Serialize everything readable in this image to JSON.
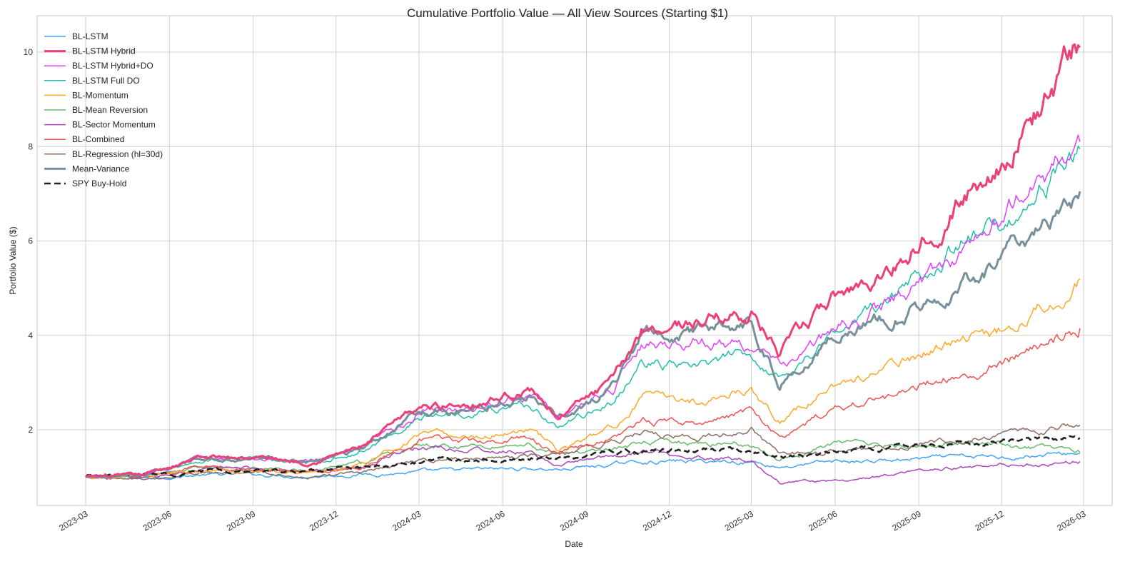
{
  "chart_data": {
    "type": "line",
    "title": "Cumulative Portfolio Value — All View Sources (Starting $1)",
    "xlabel": "Date",
    "ylabel": "Portfolio Value ($)",
    "x_range": [
      "2023-02-01",
      "2026-03-25"
    ],
    "ylim": [
      0.45,
      10.65
    ],
    "grid": true,
    "legend_position": "top-left",
    "x_ticks": [
      "2023-03",
      "2023-06",
      "2023-09",
      "2023-12",
      "2024-03",
      "2024-06",
      "2024-09",
      "2024-12",
      "2025-03",
      "2025-06",
      "2025-09",
      "2025-12",
      "2026-03"
    ],
    "y_ticks": [
      2,
      4,
      6,
      8,
      10
    ],
    "x": [
      "2023-03",
      "2023-05",
      "2023-07",
      "2023-09",
      "2023-11",
      "2024-01",
      "2024-03",
      "2024-05",
      "2024-07",
      "2024-08",
      "2024-10",
      "2024-11",
      "2025-01",
      "2025-03",
      "2025-04",
      "2025-06",
      "2025-08",
      "2025-10",
      "2025-12",
      "2026-02"
    ],
    "series": [
      {
        "name": "BL-LSTM",
        "color": "#42A5F5",
        "width": 1.5,
        "dash": false,
        "values": [
          1.0,
          0.98,
          1.04,
          1.05,
          1.02,
          1.06,
          1.1,
          1.15,
          1.18,
          1.16,
          1.26,
          1.33,
          1.33,
          1.33,
          1.22,
          1.32,
          1.35,
          1.4,
          1.43,
          1.5
        ]
      },
      {
        "name": "BL-LSTM Hybrid",
        "color": "#EC407A",
        "width": 3.0,
        "dash": false,
        "values": [
          1.0,
          1.02,
          1.4,
          1.42,
          1.32,
          1.65,
          2.45,
          2.6,
          2.85,
          2.3,
          3.0,
          4.15,
          4.3,
          4.5,
          3.6,
          4.8,
          5.4,
          6.6,
          7.7,
          10.1
        ]
      },
      {
        "name": "BL-LSTM Hybrid+DO",
        "color": "#E040FB",
        "width": 1.5,
        "dash": false,
        "values": [
          1.0,
          1.02,
          1.38,
          1.4,
          1.3,
          1.6,
          2.35,
          2.52,
          2.75,
          2.25,
          2.9,
          3.85,
          3.9,
          3.8,
          3.3,
          4.1,
          4.7,
          5.5,
          6.5,
          8.1
        ]
      },
      {
        "name": "BL-LSTM Full DO",
        "color": "#1FBFAA",
        "width": 1.5,
        "dash": false,
        "values": [
          1.0,
          1.01,
          1.36,
          1.38,
          1.28,
          1.55,
          2.25,
          2.42,
          2.55,
          2.05,
          2.6,
          3.4,
          3.3,
          3.6,
          3.1,
          4.05,
          4.75,
          5.8,
          6.3,
          7.95
        ]
      },
      {
        "name": "BL-Momentum",
        "color": "#FFA726",
        "width": 1.5,
        "dash": false,
        "values": [
          1.0,
          1.0,
          1.15,
          1.14,
          1.08,
          1.25,
          1.9,
          1.85,
          2.05,
          1.55,
          2.05,
          2.7,
          2.6,
          2.9,
          2.2,
          2.95,
          3.3,
          3.85,
          4.1,
          5.2
        ]
      },
      {
        "name": "BL-Mean Reversion",
        "color": "#66BB6A",
        "width": 1.5,
        "dash": false,
        "values": [
          1.0,
          0.98,
          1.2,
          1.18,
          1.12,
          1.3,
          1.65,
          1.65,
          1.7,
          1.45,
          1.6,
          1.7,
          1.72,
          1.7,
          1.35,
          1.72,
          1.68,
          1.7,
          1.68,
          1.52
        ]
      },
      {
        "name": "BL-Sector Momentum",
        "color": "#AB47BC",
        "width": 1.5,
        "dash": false,
        "values": [
          1.0,
          0.97,
          1.14,
          1.2,
          1.1,
          1.25,
          1.62,
          1.58,
          1.5,
          1.25,
          1.45,
          1.52,
          1.45,
          1.38,
          0.88,
          0.92,
          1.05,
          1.18,
          1.25,
          1.33
        ]
      },
      {
        "name": "BL-Combined",
        "color": "#EF5350",
        "width": 1.5,
        "dash": false,
        "values": [
          1.0,
          1.02,
          1.2,
          1.17,
          1.1,
          1.22,
          1.8,
          1.75,
          1.85,
          1.45,
          1.85,
          2.2,
          2.15,
          2.45,
          1.8,
          2.45,
          2.7,
          3.15,
          3.4,
          4.15
        ]
      },
      {
        "name": "BL-Regression (hl=30d)",
        "color": "#8D6E63",
        "width": 1.5,
        "dash": false,
        "values": [
          1.0,
          0.92,
          1.1,
          1.12,
          1.0,
          1.15,
          1.35,
          1.4,
          1.45,
          1.45,
          1.75,
          1.95,
          1.8,
          2.05,
          1.45,
          1.55,
          1.65,
          1.8,
          1.85,
          2.1
        ]
      },
      {
        "name": "Mean-Variance",
        "color": "#78909C",
        "width": 3.0,
        "dash": false,
        "values": [
          1.0,
          1.0,
          1.38,
          1.4,
          1.3,
          1.6,
          2.35,
          2.5,
          2.75,
          2.25,
          2.9,
          4.0,
          4.05,
          4.3,
          3.0,
          4.0,
          4.4,
          4.9,
          5.6,
          7.05
        ]
      },
      {
        "name": "SPY Buy-Hold",
        "color": "#222222",
        "width": 2.6,
        "dash": true,
        "values": [
          1.0,
          1.03,
          1.12,
          1.13,
          1.1,
          1.2,
          1.3,
          1.35,
          1.42,
          1.4,
          1.5,
          1.55,
          1.58,
          1.58,
          1.4,
          1.55,
          1.62,
          1.7,
          1.75,
          1.82
        ]
      }
    ]
  }
}
